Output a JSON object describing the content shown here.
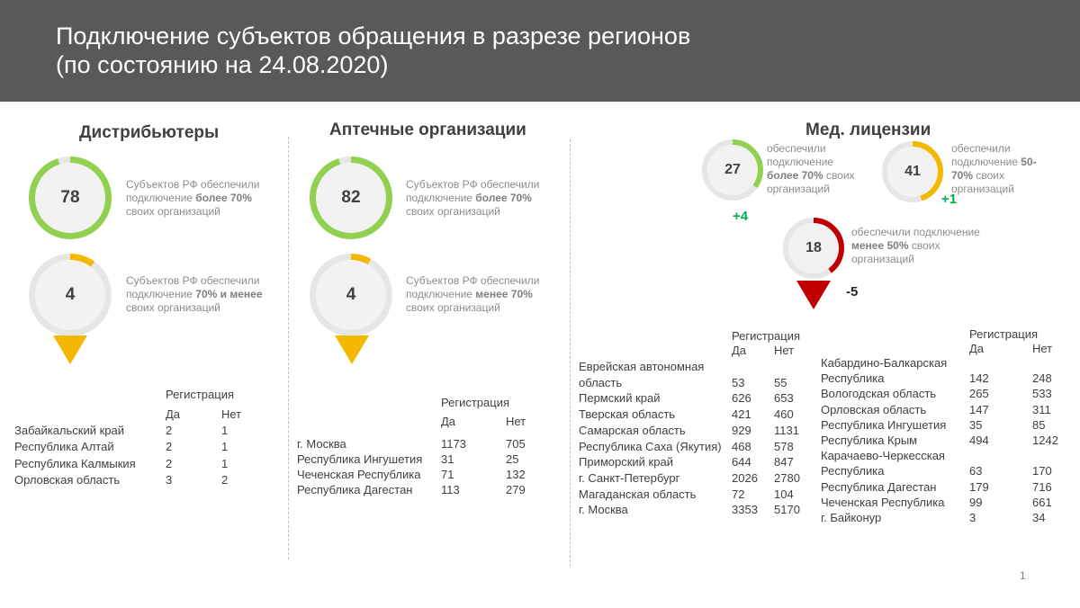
{
  "title": {
    "line1": "Подключение субъектов обращения в разрезе регионов",
    "line2": "(по состоянию на 24.08.2020)"
  },
  "colors": {
    "green": "#92d050",
    "yellow": "#f5b800",
    "red": "#c00000",
    "track": "#e6e6e6",
    "delta_green": "#00b050"
  },
  "distributors": {
    "title": "Дистрибьютеры",
    "gauge1": {
      "value": "78",
      "fill": 0.95,
      "caption_pre": "Субъектов РФ обеспечили подключение ",
      "caption_bold": "более 70%",
      "caption_post": " своих организаций"
    },
    "gauge2": {
      "value": "4",
      "fill": 0.1,
      "caption_pre": "Субъектов РФ обеспечили подключение ",
      "caption_bold": "70% и менее",
      "caption_post": " своих организаций"
    },
    "table": {
      "header": "Регистрация",
      "yes": "Да",
      "no": "Нет",
      "rows": [
        {
          "region": "Забайкальский край",
          "yes": "2",
          "no": "1"
        },
        {
          "region": "Республика Алтай",
          "yes": "2",
          "no": "1"
        },
        {
          "region": "Республика Калмыкия",
          "yes": "2",
          "no": "1"
        },
        {
          "region": "Орловская область",
          "yes": "3",
          "no": "2"
        }
      ]
    }
  },
  "pharmacies": {
    "title": "Аптечные организации",
    "gauge1": {
      "value": "82",
      "fill": 0.95,
      "caption_pre": "Субъектов РФ обеспечили подключение ",
      "caption_bold": "более 70%",
      "caption_post": " своих организаций"
    },
    "gauge2": {
      "value": "4",
      "fill": 0.08,
      "caption_pre": "Субъектов РФ обеспечили подключение ",
      "caption_bold": "менее 70%",
      "caption_post": " своих организаций"
    },
    "table": {
      "header": "Регистрация",
      "yes": "Да",
      "no": "Нет",
      "rows": [
        {
          "region": "г. Москва",
          "yes": "1173",
          "no": "705"
        },
        {
          "region": "Республика Ингушетия",
          "yes": "31",
          "no": "25"
        },
        {
          "region": "Чеченская Республика",
          "yes": "71",
          "no": "132"
        },
        {
          "region": "Республика Дагестан",
          "yes": "113",
          "no": "279"
        }
      ]
    }
  },
  "medical": {
    "title": "Мед. лицензии",
    "gauge1": {
      "value": "27",
      "fill": 0.35,
      "delta": "+4",
      "caption_pre": "обеспечили подключение ",
      "caption_bold": "более 70%",
      "caption_post": " своих организаций"
    },
    "gauge2": {
      "value": "41",
      "fill": 0.45,
      "delta": "+1",
      "caption_pre": "обеспечили подключение ",
      "caption_bold": "50-70%",
      "caption_post": " своих организаций"
    },
    "gauge3": {
      "value": "18",
      "fill": 0.4,
      "delta": "-5",
      "caption_pre": "обеспечили подключение ",
      "caption_bold": "менее  50%",
      "caption_post": " своих организаций"
    },
    "table_left": {
      "header": "Регистрация",
      "yes": "Да",
      "no": "Нет",
      "rows": [
        {
          "region": "Еврейская автономная",
          "yes": "",
          "no": ""
        },
        {
          "region": "область",
          "yes": "53",
          "no": "55"
        },
        {
          "region": "Пермский край",
          "yes": "626",
          "no": "653"
        },
        {
          "region": "Тверская область",
          "yes": "421",
          "no": "460"
        },
        {
          "region": "Самарская область",
          "yes": "929",
          "no": "1131"
        },
        {
          "region": "Республика Саха (Якутия)",
          "yes": "468",
          "no": "578"
        },
        {
          "region": "Приморский край",
          "yes": "644",
          "no": "847"
        },
        {
          "region": "г. Санкт-Петербург",
          "yes": "2026",
          "no": "2780"
        },
        {
          "region": "Магаданская область",
          "yes": "72",
          "no": "104"
        },
        {
          "region": "г. Москва",
          "yes": "3353",
          "no": "5170"
        }
      ]
    },
    "table_right": {
      "header": "Регистрация",
      "yes": "Да",
      "no": "Нет",
      "rows": [
        {
          "region": "Кабардино-Балкарская",
          "yes": "",
          "no": ""
        },
        {
          "region": "Республика",
          "yes": "142",
          "no": "248"
        },
        {
          "region": "Вологодская область",
          "yes": "265",
          "no": "533"
        },
        {
          "region": "Орловская область",
          "yes": "147",
          "no": "311"
        },
        {
          "region": "Республика Ингушетия",
          "yes": "35",
          "no": "85"
        },
        {
          "region": "Республика Крым",
          "yes": "494",
          "no": "1242"
        },
        {
          "region": "Карачаево-Черкесская",
          "yes": "",
          "no": ""
        },
        {
          "region": "Республика",
          "yes": "63",
          "no": "170"
        },
        {
          "region": "Республика Дагестан",
          "yes": "179",
          "no": "716"
        },
        {
          "region": "Чеченская Республика",
          "yes": "99",
          "no": "661"
        },
        {
          "region": "г. Байконур",
          "yes": "3",
          "no": "34"
        }
      ]
    }
  },
  "page_number": "1"
}
